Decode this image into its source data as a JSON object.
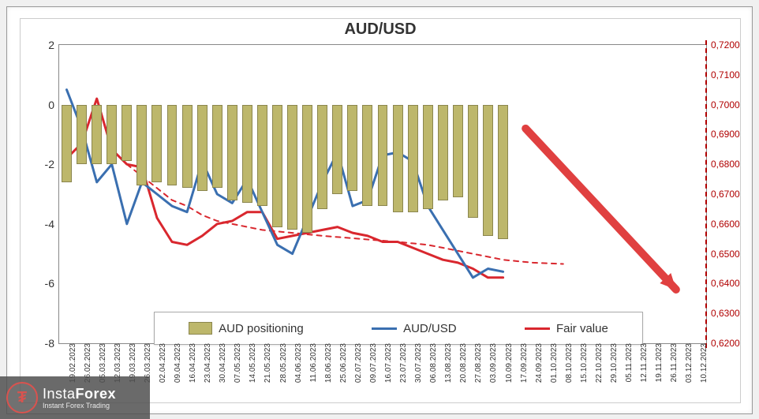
{
  "chart": {
    "type": "combo-bar-line-dual-axis",
    "title": "AUD/USD",
    "title_fontsize": 20,
    "background_color": "#ffffff",
    "frame_color": "#999999",
    "plot_border_color": "#888888",
    "left_axis": {
      "min": -8,
      "max": 2,
      "ticks": [
        -8,
        -6,
        -4,
        -2,
        0,
        2
      ],
      "label_color": "#333333",
      "label_fontsize": 14
    },
    "right_axis": {
      "min": 0.62,
      "max": 0.72,
      "ticks": [
        0.62,
        0.63,
        0.64,
        0.65,
        0.66,
        0.67,
        0.68,
        0.69,
        0.7,
        0.71,
        0.72
      ],
      "tick_labels": [
        "0,6200",
        "0,6300",
        "0,6400",
        "0,6500",
        "0,6600",
        "0,6700",
        "0,6800",
        "0,6900",
        "0,7000",
        "0,7100",
        "0,7200"
      ],
      "label_color": "#b00000",
      "label_fontsize": 12,
      "axis_dash": true
    },
    "x_categories": [
      "19.02.2023",
      "26.02.2023",
      "05.03.2023",
      "12.03.2023",
      "19.03.2023",
      "26.03.2023",
      "02.04.2023",
      "09.04.2023",
      "16.04.2023",
      "23.04.2023",
      "30.04.2023",
      "07.05.2023",
      "14.05.2023",
      "21.05.2023",
      "28.05.2023",
      "04.06.2023",
      "11.06.2023",
      "18.06.2023",
      "25.06.2023",
      "02.07.2023",
      "09.07.2023",
      "16.07.2023",
      "23.07.2023",
      "30.07.2023",
      "06.08.2023",
      "13.08.2023",
      "20.08.2023",
      "27.08.2023",
      "03.09.2023",
      "10.09.2023",
      "17.09.2023",
      "24.09.2023",
      "01.10.2023",
      "08.10.2023",
      "15.10.2023",
      "22.10.2023",
      "29.10.2023",
      "05.11.2023",
      "12.11.2023",
      "19.11.2023",
      "26.11.2023",
      "03.12.2023",
      "10.12.2023"
    ],
    "x_label_fontsize": 10,
    "x_label_rotation_deg": -90,
    "bars": {
      "name": "AUD positioning",
      "color": "#bdb76b",
      "border_color": "#8b864e",
      "width_fraction": 0.68,
      "zero_baseline": 0,
      "values": [
        -2.6,
        -2.0,
        -2.0,
        -2.0,
        -1.9,
        -2.7,
        -2.6,
        -2.7,
        -2.8,
        -2.9,
        -2.8,
        -3.2,
        -3.3,
        -3.4,
        -4.1,
        -4.2,
        -4.3,
        -3.5,
        -3.0,
        -2.9,
        -3.4,
        -3.4,
        -3.6,
        -3.6,
        -3.5,
        -3.2,
        -3.1,
        -3.8,
        -4.4,
        -4.5,
        null,
        null,
        null,
        null,
        null,
        null,
        null,
        null,
        null,
        null,
        null,
        null,
        null
      ]
    },
    "line_audusd": {
      "name": "AUD/USD",
      "color": "#3a6fb0",
      "width": 3,
      "dash": false,
      "axis": "right",
      "values": [
        0.705,
        0.692,
        0.674,
        0.68,
        0.66,
        0.674,
        0.67,
        0.666,
        0.664,
        0.681,
        0.67,
        0.667,
        0.675,
        0.664,
        0.653,
        0.65,
        0.662,
        0.674,
        0.684,
        0.666,
        0.668,
        0.683,
        0.684,
        0.681,
        0.666,
        0.658,
        0.65,
        0.642,
        0.645,
        0.644,
        null,
        null,
        null,
        null,
        null,
        null,
        null,
        null,
        null,
        null,
        null,
        null,
        null
      ]
    },
    "line_fairvalue": {
      "name": "Fair value",
      "color": "#d9272e",
      "width": 3,
      "dash": false,
      "axis": "right",
      "values": [
        0.682,
        0.687,
        0.702,
        0.685,
        0.68,
        0.679,
        0.662,
        0.654,
        0.653,
        0.656,
        0.66,
        0.661,
        0.664,
        0.664,
        0.655,
        0.656,
        0.657,
        0.658,
        0.659,
        0.657,
        0.656,
        0.654,
        0.654,
        0.652,
        0.65,
        0.648,
        0.647,
        0.645,
        0.642,
        0.642,
        null,
        null,
        null,
        null,
        null,
        null,
        null,
        null,
        null,
        null,
        null,
        null,
        null
      ]
    },
    "line_fairvalue_projection": {
      "name": "Fair value projection",
      "color": "#d9272e",
      "width": 2,
      "dash": true,
      "axis": "right",
      "values": [
        null,
        null,
        null,
        null,
        0.68,
        0.676,
        0.672,
        0.668,
        0.666,
        0.663,
        0.661,
        0.66,
        0.659,
        0.658,
        0.6575,
        0.657,
        0.6565,
        0.656,
        0.6556,
        0.6552,
        0.6548,
        0.6544,
        0.654,
        0.6535,
        0.653,
        0.652,
        0.651,
        0.65,
        0.649,
        0.648,
        0.6475,
        0.647,
        0.6468,
        0.6466,
        null,
        null,
        null,
        null,
        null,
        null,
        null,
        null,
        null
      ]
    },
    "arrow": {
      "color": "#e04040",
      "width": 10,
      "start": {
        "x_index": 30.5,
        "y_right": 0.692
      },
      "end": {
        "x_index": 40.5,
        "y_right": 0.638
      },
      "head_size": 22
    },
    "legend": {
      "items": [
        {
          "label": "AUD positioning",
          "type": "bar",
          "color": "#bdb76b",
          "border": "#8b864e"
        },
        {
          "label": "AUD/USD",
          "type": "line",
          "color": "#3a6fb0"
        },
        {
          "label": "Fair value",
          "type": "line",
          "color": "#d9272e"
        }
      ],
      "border_color": "#aaaaaa",
      "background": "#ffffff",
      "fontsize": 15
    }
  },
  "watermark": {
    "brand_prefix": "Insta",
    "brand_suffix": "Forex",
    "tagline": "Instant Forex Trading",
    "logo_glyph": "₮",
    "logo_color": "#d9534f",
    "background": "rgba(80,80,80,0.85)",
    "text_color": "#ffffff"
  }
}
